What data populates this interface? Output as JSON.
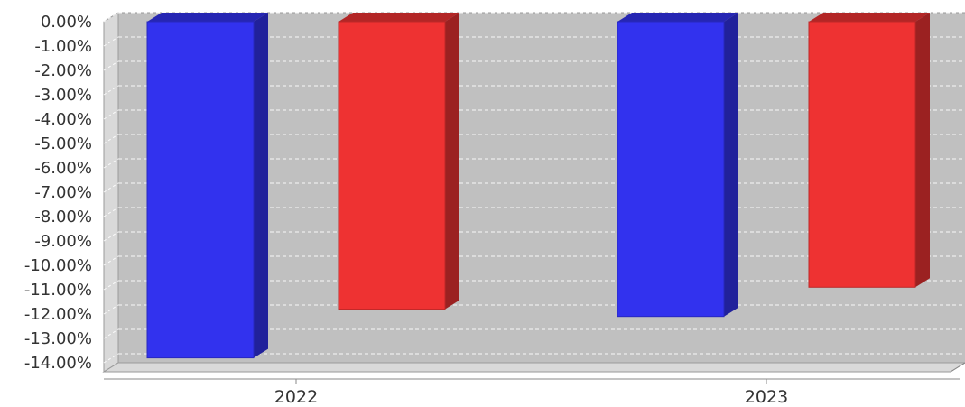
{
  "chart_data": {
    "type": "bar",
    "categories": [
      "2022",
      "2023"
    ],
    "series": [
      {
        "values": [
          -13.8,
          -12.1
        ],
        "color": "#3232ee"
      },
      {
        "values": [
          -11.8,
          -10.9
        ],
        "color": "#ee3232"
      }
    ],
    "series_order_in_group": "blue then red within each year",
    "ylim": [
      -14,
      0
    ],
    "yticks": [
      "0.00%",
      "-1.00%",
      "-2.00%",
      "-3.00%",
      "-4.00%",
      "-5.00%",
      "-6.00%",
      "-7.00%",
      "-8.00%",
      "-9.00%",
      "-10.00%",
      "-11.00%",
      "-12.00%",
      "-13.00%",
      "-14.00%"
    ],
    "ytick_values": [
      0,
      -1,
      -2,
      -3,
      -4,
      -5,
      -6,
      -7,
      -8,
      -9,
      -10,
      -11,
      -12,
      -13,
      -14
    ],
    "grid": true,
    "style": "3d",
    "plot_background": "#c0c0c0"
  }
}
